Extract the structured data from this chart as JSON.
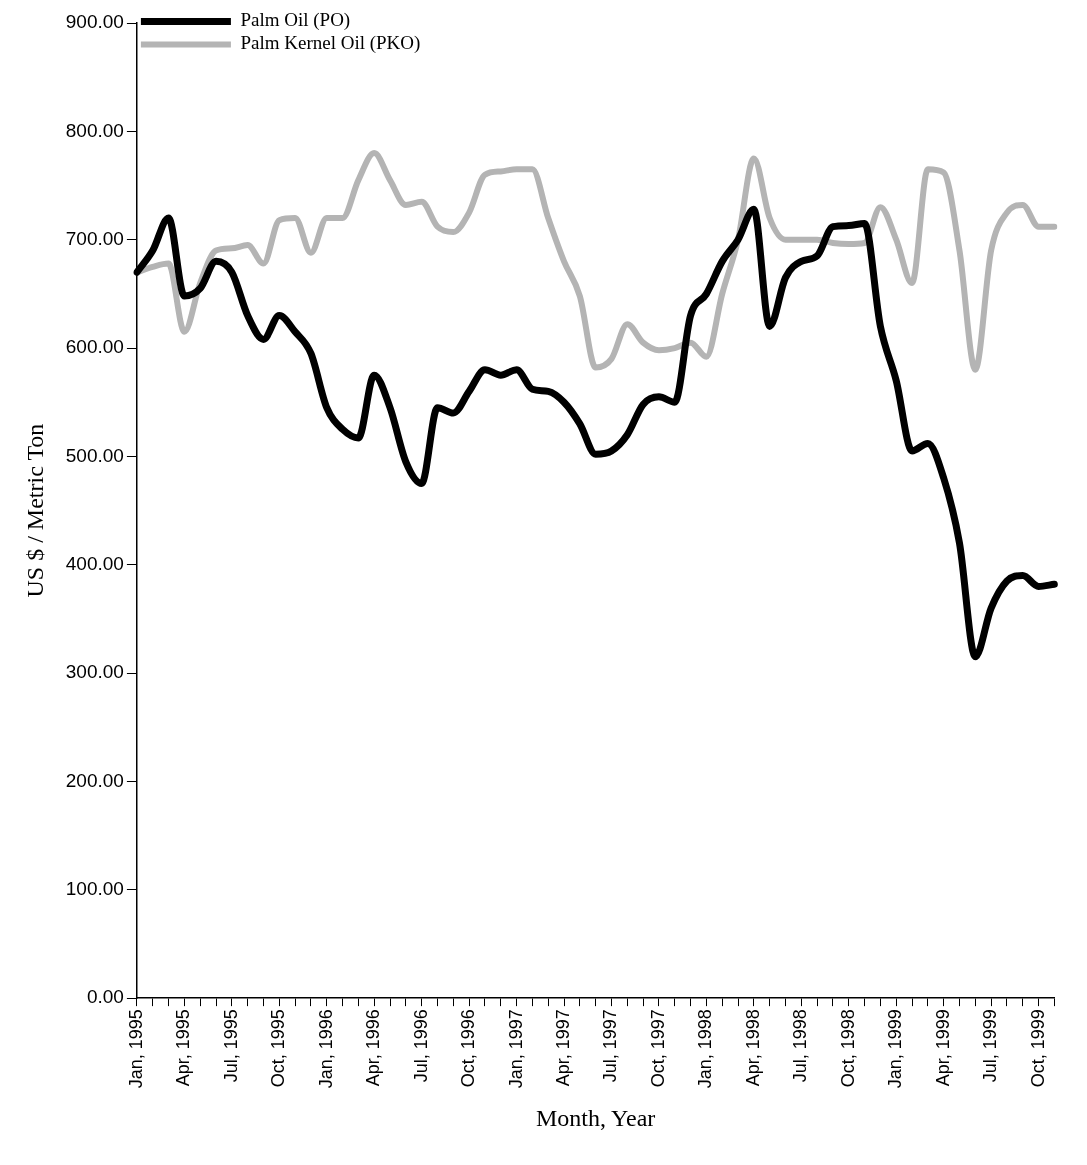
{
  "chart_data": {
    "type": "line",
    "xlabel": "Month, Year",
    "ylabel": "US $ / Metric Ton",
    "categories": [
      "Jan, 1995",
      null,
      null,
      "Apr, 1995",
      null,
      null,
      "Jul, 1995",
      null,
      null,
      "Oct, 1995",
      null,
      null,
      "Jan, 1996",
      null,
      null,
      "Apr, 1996",
      null,
      null,
      "Jul, 1996",
      null,
      null,
      "Oct, 1996",
      null,
      null,
      "Jan, 1997",
      null,
      null,
      "Apr, 1997",
      null,
      null,
      "Jul, 1997",
      null,
      null,
      "Oct, 1997",
      null,
      null,
      "Jan, 1998",
      null,
      null,
      "Apr, 1998",
      null,
      null,
      "Jul, 1998",
      null,
      null,
      "Oct, 1998",
      null,
      null,
      "Jan, 1999",
      null,
      null,
      "Apr, 1999",
      null,
      null,
      "Jul, 1999",
      null,
      null,
      "Oct, 1999",
      null
    ],
    "series": [
      {
        "name": "Palm Oil (PO)",
        "color": "#000000",
        "values": [
          670,
          690,
          720,
          648,
          655,
          680,
          670,
          630,
          608,
          630,
          615,
          595,
          545,
          525,
          517,
          575,
          545,
          495,
          475,
          545,
          540,
          560,
          580,
          575,
          580,
          562,
          560,
          550,
          530,
          502,
          505,
          520,
          548,
          555,
          550,
          630,
          650,
          680,
          700,
          728,
          620,
          665,
          680,
          685,
          712,
          713,
          715,
          620,
          570,
          505,
          512,
          480,
          420,
          315,
          360,
          385,
          390,
          380,
          382
        ]
      },
      {
        "name": "Palm Kernel Oil (PKO)",
        "color": "#b4b4b4",
        "values": [
          670,
          675,
          678,
          615,
          660,
          690,
          692,
          695,
          678,
          718,
          720,
          688,
          720,
          720,
          755,
          780,
          755,
          732,
          735,
          712,
          707,
          725,
          760,
          763,
          765,
          765,
          720,
          680,
          648,
          582,
          590,
          622,
          605,
          598,
          600,
          605,
          592,
          650,
          700,
          775,
          720,
          700,
          700,
          700,
          697,
          696,
          697,
          730,
          700,
          660,
          765,
          762,
          690,
          580,
          690,
          725,
          732,
          712,
          712
        ]
      }
    ],
    "ylim": [
      0,
      900
    ],
    "yticks": [
      {
        "value": 0,
        "label": "0.00"
      },
      {
        "value": 100,
        "label": "100.00"
      },
      {
        "value": 200,
        "label": "200.00"
      },
      {
        "value": 300,
        "label": "300.00"
      },
      {
        "value": 400,
        "label": "400.00"
      },
      {
        "value": 500,
        "label": "500.00"
      },
      {
        "value": 600,
        "label": "600.00"
      },
      {
        "value": 700,
        "label": "700.00"
      },
      {
        "value": 800,
        "label": "800.00"
      },
      {
        "value": 900,
        "label": "900.00"
      }
    ],
    "legend": "top left",
    "marker": "none",
    "line_style": "solid"
  }
}
